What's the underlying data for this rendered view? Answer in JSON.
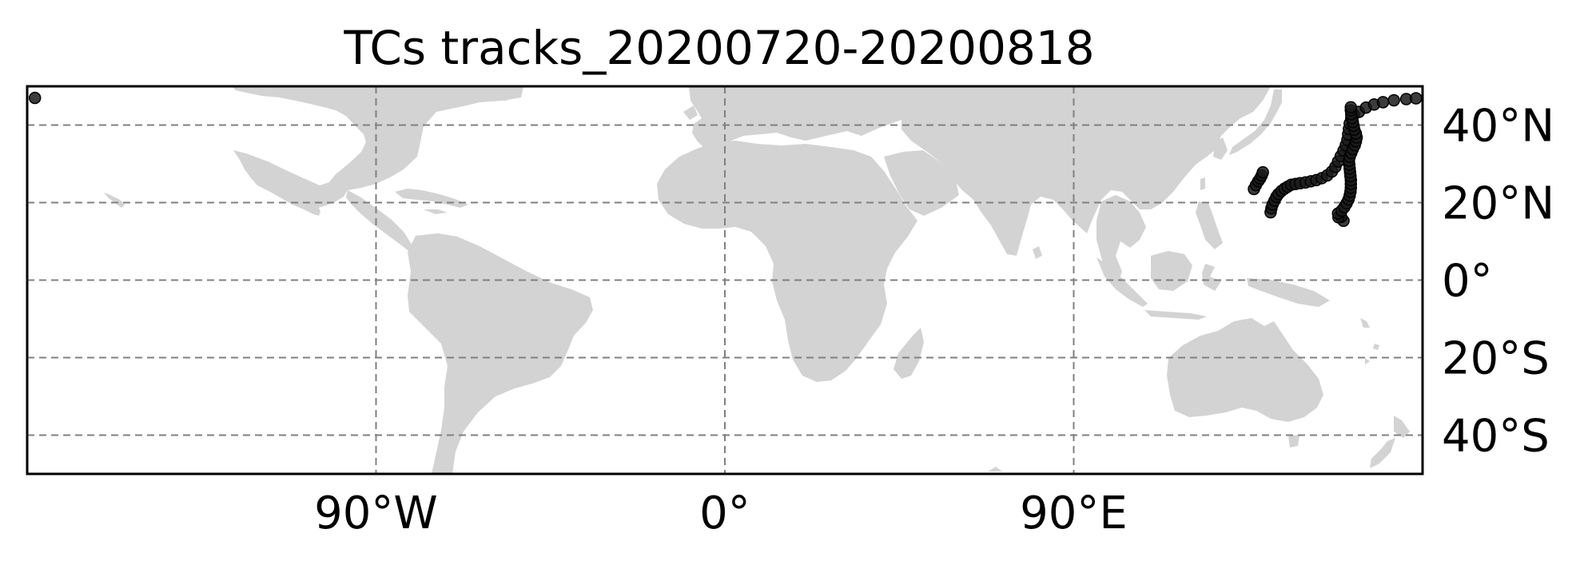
{
  "map": {
    "title": "TCs tracks_20200720-20200818",
    "projection": "PlateCarree",
    "extent": {
      "lon": [
        -180,
        180
      ],
      "lat": [
        -50,
        50
      ]
    },
    "land_color": "#d3d3d3",
    "ocean_color": "#ffffff",
    "gridline_color": "#808080",
    "gridlines": {
      "lon": [
        -90,
        0,
        90
      ],
      "lat": [
        -40,
        -20,
        0,
        20,
        40
      ]
    },
    "x_tick_labels": [
      {
        "lon": -90,
        "label": "90°W"
      },
      {
        "lon": 0,
        "label": "0°"
      },
      {
        "lon": 90,
        "label": "90°E"
      }
    ],
    "y_tick_labels": [
      {
        "lat": 40,
        "label": "40°N"
      },
      {
        "lat": 20,
        "label": "20°N"
      },
      {
        "lat": 0,
        "label": "0°"
      },
      {
        "lat": -20,
        "label": "20°S"
      },
      {
        "lat": -40,
        "label": "40°S"
      }
    ],
    "y_tick_side": "right",
    "x_tick_side": "bottom"
  },
  "chart_data": {
    "type": "scatter",
    "title": "TCs tracks_20200720-20200818",
    "xlabel": "",
    "ylabel": "",
    "xlim": [
      -180,
      180
    ],
    "ylim": [
      -50,
      50
    ],
    "point_color": "#1a1a1a",
    "tracks": [
      {
        "points": [
          [
            -178,
            47
          ]
        ]
      },
      {
        "points": [
          [
            136.5,
            23.5
          ],
          [
            137,
            24.5
          ],
          [
            137.6,
            25.5
          ],
          [
            138.1,
            26.2
          ],
          [
            138.5,
            27
          ],
          [
            138.8,
            27.8
          ]
        ]
      },
      {
        "points": [
          [
            140.8,
            17.5
          ],
          [
            141,
            18.5
          ],
          [
            141.3,
            19.5
          ],
          [
            141.8,
            20.5
          ],
          [
            142.3,
            21.5
          ],
          [
            142.8,
            22.2
          ],
          [
            143.6,
            23
          ],
          [
            144.4,
            23.6
          ],
          [
            145.2,
            24.1
          ],
          [
            146.1,
            24.6
          ],
          [
            147.2,
            24.8
          ],
          [
            148.4,
            25
          ],
          [
            149.8,
            25.2
          ],
          [
            151.2,
            25.5
          ],
          [
            152.6,
            25.8
          ],
          [
            154,
            26.3
          ],
          [
            155.4,
            27
          ],
          [
            156.6,
            28
          ],
          [
            157.5,
            29.2
          ],
          [
            158.2,
            30.6
          ],
          [
            158.9,
            32
          ],
          [
            159.6,
            33.4
          ],
          [
            160.2,
            34.8
          ],
          [
            160.6,
            36.2
          ],
          [
            160.8,
            37.6
          ],
          [
            161,
            39
          ],
          [
            161.2,
            40.4
          ],
          [
            161.6,
            41.8
          ],
          [
            162.3,
            42.7
          ],
          [
            163.6,
            43.4
          ],
          [
            165.4,
            44.5
          ],
          [
            167.5,
            45.3
          ],
          [
            169.8,
            45.9
          ],
          [
            172.6,
            46.4
          ],
          [
            175.8,
            46.7
          ],
          [
            178.3,
            46.9
          ]
        ]
      },
      {
        "points": [
          [
            159.6,
            15.3
          ],
          [
            159,
            16.3
          ],
          [
            158.3,
            16.2
          ],
          [
            158.2,
            17.2
          ],
          [
            159.1,
            17.9
          ],
          [
            159.8,
            18.8
          ],
          [
            160.4,
            19.8
          ],
          [
            160.9,
            20.8
          ],
          [
            161.2,
            21.8
          ],
          [
            161.4,
            22.8
          ],
          [
            161.5,
            23.8
          ],
          [
            161.5,
            24.8
          ],
          [
            161.5,
            25.8
          ],
          [
            161.4,
            26.8
          ],
          [
            161.3,
            27.8
          ],
          [
            161.2,
            28.8
          ],
          [
            161.1,
            29.8
          ],
          [
            161,
            30.8
          ],
          [
            161.2,
            31.8
          ],
          [
            161.6,
            32.8
          ],
          [
            162,
            33.8
          ],
          [
            162.5,
            34.8
          ],
          [
            162.8,
            35.8
          ],
          [
            163,
            36.8
          ],
          [
            162.8,
            37.8
          ],
          [
            162.4,
            38.8
          ],
          [
            162.2,
            39.8
          ],
          [
            162,
            40.8
          ],
          [
            161.8,
            41.8
          ],
          [
            161.6,
            42.8
          ],
          [
            161.5,
            43.8
          ],
          [
            161.5,
            44.6
          ]
        ]
      }
    ]
  }
}
